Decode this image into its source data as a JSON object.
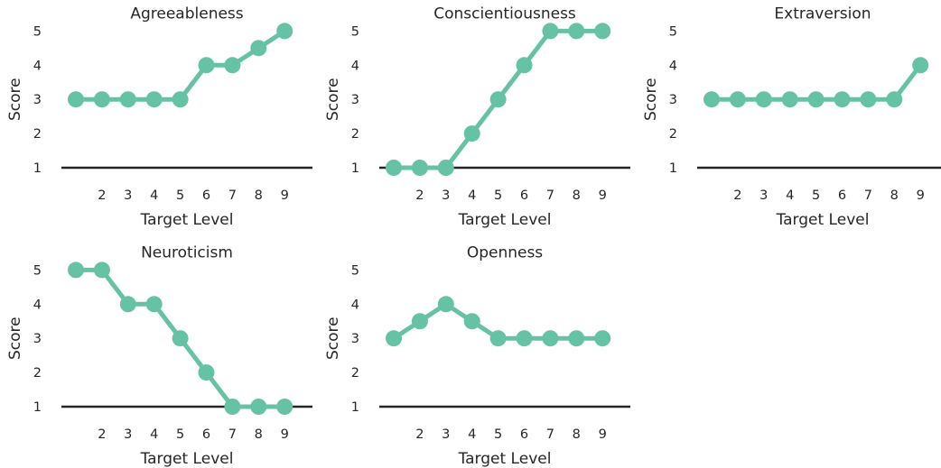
{
  "chart_data": [
    {
      "type": "line",
      "title": "Agreeableness",
      "xlabel": "Target Level",
      "ylabel": "Score",
      "x": [
        1,
        2,
        3,
        4,
        5,
        6,
        7,
        8,
        9
      ],
      "xticks": [
        2,
        3,
        4,
        5,
        6,
        7,
        8,
        9
      ],
      "y": [
        3,
        3,
        3,
        3,
        3,
        4,
        4,
        4.5,
        5
      ],
      "yticks": [
        1,
        2,
        3,
        4,
        5
      ],
      "ylim": [
        1,
        5
      ],
      "color": "#66c2a5"
    },
    {
      "type": "line",
      "title": "Conscientiousness",
      "xlabel": "Target Level",
      "ylabel": "Score",
      "x": [
        1,
        2,
        3,
        4,
        5,
        6,
        7,
        8,
        9
      ],
      "xticks": [
        2,
        3,
        4,
        5,
        6,
        7,
        8,
        9
      ],
      "y": [
        1,
        1,
        1,
        2,
        3,
        4,
        5,
        5,
        5
      ],
      "yticks": [
        1,
        2,
        3,
        4,
        5
      ],
      "ylim": [
        1,
        5
      ],
      "color": "#66c2a5"
    },
    {
      "type": "line",
      "title": "Extraversion",
      "xlabel": "Target Level",
      "ylabel": "Score",
      "x": [
        1,
        2,
        3,
        4,
        5,
        6,
        7,
        8,
        9
      ],
      "xticks": [
        2,
        3,
        4,
        5,
        6,
        7,
        8,
        9
      ],
      "y": [
        3,
        3,
        3,
        3,
        3,
        3,
        3,
        3,
        4
      ],
      "yticks": [
        1,
        2,
        3,
        4,
        5
      ],
      "ylim": [
        1,
        5
      ],
      "color": "#66c2a5"
    },
    {
      "type": "line",
      "title": "Neuroticism",
      "xlabel": "Target Level",
      "ylabel": "Score",
      "x": [
        1,
        2,
        3,
        4,
        5,
        6,
        7,
        8,
        9
      ],
      "xticks": [
        2,
        3,
        4,
        5,
        6,
        7,
        8,
        9
      ],
      "y": [
        5,
        5,
        4,
        4,
        3,
        2,
        1,
        1,
        1
      ],
      "yticks": [
        1,
        2,
        3,
        4,
        5
      ],
      "ylim": [
        1,
        5
      ],
      "color": "#66c2a5"
    },
    {
      "type": "line",
      "title": "Openness",
      "xlabel": "Target Level",
      "ylabel": "Score",
      "x": [
        1,
        2,
        3,
        4,
        5,
        6,
        7,
        8,
        9
      ],
      "xticks": [
        2,
        3,
        4,
        5,
        6,
        7,
        8,
        9
      ],
      "y": [
        3,
        3.5,
        4,
        3.5,
        3,
        3,
        3,
        3,
        3
      ],
      "yticks": [
        1,
        2,
        3,
        4,
        5
      ],
      "ylim": [
        1,
        5
      ],
      "color": "#66c2a5"
    }
  ]
}
